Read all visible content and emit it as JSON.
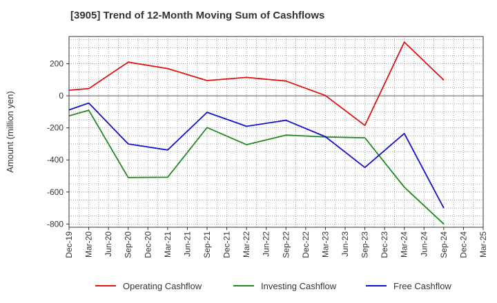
{
  "chart_data": {
    "type": "line",
    "title": "[3905]  Trend of 12-Month Moving Sum of Cashflows",
    "ylabel": "Amount (million yen)",
    "xlabel": "",
    "ylim": [
      -820,
      370
    ],
    "yticks": [
      200,
      0,
      -200,
      -400,
      -600,
      -800
    ],
    "categories": [
      "Dec-19",
      "Mar-20",
      "Jun-20",
      "Sep-20",
      "Dec-20",
      "Mar-21",
      "Jun-21",
      "Sep-21",
      "Dec-21",
      "Mar-22",
      "Jun-22",
      "Sep-22",
      "Dec-22",
      "Mar-23",
      "Jun-23",
      "Sep-23",
      "Dec-23",
      "Mar-24",
      "Jun-24",
      "Sep-24",
      "Dec-24",
      "Mar-25"
    ],
    "grid": true,
    "legend_position": "bottom",
    "series": [
      {
        "name": "Operating Cashflow",
        "color": "#dd1111",
        "values": [
          35,
          45,
          null,
          210,
          null,
          170,
          null,
          95,
          null,
          115,
          null,
          92,
          null,
          2,
          null,
          -185,
          null,
          335,
          null,
          98,
          null,
          null
        ]
      },
      {
        "name": "Investing Cashflow",
        "color": "#228822",
        "values": [
          -125,
          -90,
          null,
          -510,
          null,
          -508,
          null,
          -198,
          null,
          -305,
          null,
          -245,
          null,
          -257,
          null,
          -262,
          null,
          -570,
          null,
          -800,
          null,
          null
        ]
      },
      {
        "name": "Free Cashflow",
        "color": "#1111cc",
        "values": [
          -88,
          -45,
          null,
          -300,
          null,
          -338,
          null,
          -103,
          null,
          -190,
          null,
          -153,
          null,
          -255,
          null,
          -447,
          null,
          -235,
          null,
          -700,
          null,
          null
        ]
      }
    ]
  }
}
